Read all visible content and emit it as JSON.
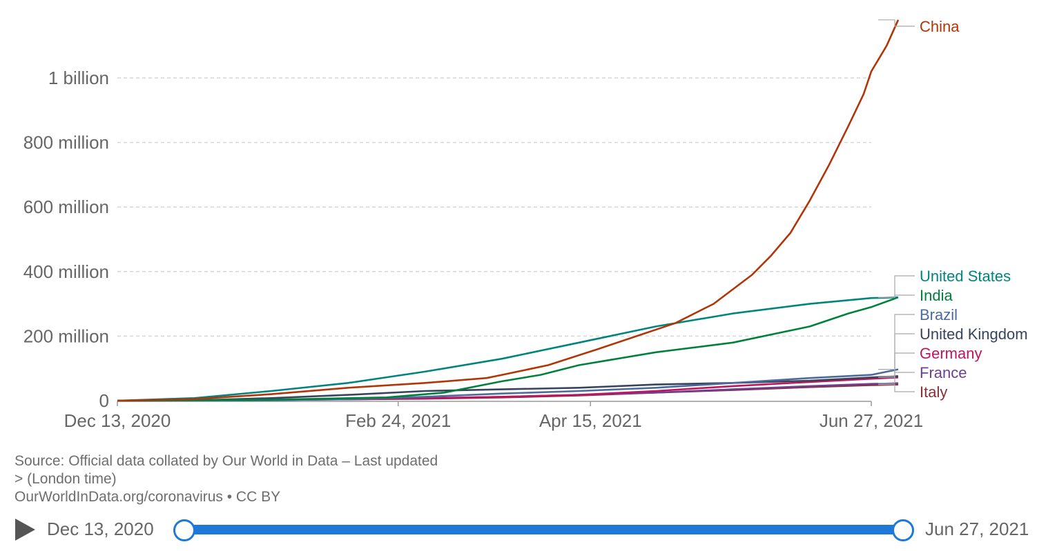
{
  "chart_data": {
    "type": "line",
    "title": "",
    "xlabel": "",
    "ylabel": "",
    "ylim": [
      0,
      1200000000
    ],
    "y_ticks": [
      {
        "value": 0,
        "label": "0"
      },
      {
        "value": 200000000,
        "label": "200 million"
      },
      {
        "value": 400000000,
        "label": "400 million"
      },
      {
        "value": 600000000,
        "label": "600 million"
      },
      {
        "value": 800000000,
        "label": "800 million"
      },
      {
        "value": 1000000000,
        "label": "1 billion"
      }
    ],
    "x_ticks": [
      {
        "day": 0,
        "label": "Dec 13, 2020"
      },
      {
        "day": 73,
        "label": "Feb 24, 2021"
      },
      {
        "day": 123,
        "label": "Apr 15, 2021"
      },
      {
        "day": 196,
        "label": "Jun 27, 2021"
      }
    ],
    "x_unit": "days since Dec 13, 2020",
    "xlim": [
      0,
      196
    ],
    "series": [
      {
        "name": "China",
        "color": "#b13507",
        "points": [
          [
            0,
            0
          ],
          [
            20,
            5000000
          ],
          [
            40,
            20000000
          ],
          [
            60,
            40000000
          ],
          [
            80,
            55000000
          ],
          [
            96,
            70000000
          ],
          [
            100,
            80000000
          ],
          [
            112,
            110000000
          ],
          [
            125,
            160000000
          ],
          [
            135,
            200000000
          ],
          [
            145,
            240000000
          ],
          [
            155,
            300000000
          ],
          [
            165,
            390000000
          ],
          [
            170,
            450000000
          ],
          [
            175,
            520000000
          ],
          [
            180,
            620000000
          ],
          [
            185,
            730000000
          ],
          [
            190,
            850000000
          ],
          [
            194,
            950000000
          ],
          [
            196,
            1020000000
          ],
          [
            200,
            1100000000
          ],
          [
            203,
            1180000000
          ]
        ]
      },
      {
        "name": "United States",
        "color": "#00847e",
        "points": [
          [
            0,
            0
          ],
          [
            20,
            8000000
          ],
          [
            40,
            30000000
          ],
          [
            60,
            55000000
          ],
          [
            80,
            90000000
          ],
          [
            100,
            130000000
          ],
          [
            120,
            180000000
          ],
          [
            140,
            230000000
          ],
          [
            160,
            270000000
          ],
          [
            180,
            300000000
          ],
          [
            196,
            318000000
          ],
          [
            203,
            320000000
          ]
        ]
      },
      {
        "name": "India",
        "color": "#00813b",
        "points": [
          [
            0,
            0
          ],
          [
            40,
            3000000
          ],
          [
            70,
            10000000
          ],
          [
            85,
            25000000
          ],
          [
            100,
            60000000
          ],
          [
            110,
            80000000
          ],
          [
            120,
            110000000
          ],
          [
            140,
            150000000
          ],
          [
            160,
            180000000
          ],
          [
            180,
            230000000
          ],
          [
            190,
            270000000
          ],
          [
            196,
            290000000
          ],
          [
            203,
            320000000
          ]
        ]
      },
      {
        "name": "Brazil",
        "color": "#4c6a9c",
        "points": [
          [
            0,
            0
          ],
          [
            40,
            1000000
          ],
          [
            60,
            5000000
          ],
          [
            80,
            12000000
          ],
          [
            100,
            22000000
          ],
          [
            120,
            30000000
          ],
          [
            140,
            40000000
          ],
          [
            160,
            55000000
          ],
          [
            180,
            70000000
          ],
          [
            196,
            80000000
          ],
          [
            203,
            97000000
          ]
        ]
      },
      {
        "name": "United Kingdom",
        "color": "#38435c",
        "points": [
          [
            0,
            0
          ],
          [
            20,
            1000000
          ],
          [
            40,
            8000000
          ],
          [
            60,
            18000000
          ],
          [
            80,
            30000000
          ],
          [
            100,
            35000000
          ],
          [
            120,
            40000000
          ],
          [
            140,
            50000000
          ],
          [
            160,
            55000000
          ],
          [
            180,
            62000000
          ],
          [
            196,
            72000000
          ],
          [
            203,
            76000000
          ]
        ]
      },
      {
        "name": "Germany",
        "color": "#c0155e",
        "points": [
          [
            0,
            0
          ],
          [
            40,
            3000000
          ],
          [
            60,
            5000000
          ],
          [
            80,
            8000000
          ],
          [
            100,
            12000000
          ],
          [
            120,
            18000000
          ],
          [
            140,
            30000000
          ],
          [
            160,
            45000000
          ],
          [
            180,
            58000000
          ],
          [
            196,
            68000000
          ],
          [
            203,
            72000000
          ]
        ]
      },
      {
        "name": "France",
        "color": "#6d3e91",
        "points": [
          [
            0,
            0
          ],
          [
            40,
            2000000
          ],
          [
            60,
            4000000
          ],
          [
            80,
            7000000
          ],
          [
            100,
            12000000
          ],
          [
            120,
            18000000
          ],
          [
            140,
            25000000
          ],
          [
            160,
            35000000
          ],
          [
            180,
            45000000
          ],
          [
            196,
            52000000
          ],
          [
            203,
            54000000
          ]
        ]
      },
      {
        "name": "Italy",
        "color": "#883039",
        "points": [
          [
            0,
            0
          ],
          [
            40,
            2000000
          ],
          [
            60,
            4000000
          ],
          [
            80,
            6000000
          ],
          [
            100,
            10000000
          ],
          [
            120,
            16000000
          ],
          [
            140,
            25000000
          ],
          [
            160,
            33000000
          ],
          [
            180,
            42000000
          ],
          [
            196,
            48000000
          ],
          [
            203,
            50000000
          ]
        ]
      }
    ]
  },
  "source": {
    "line1": "Source: Official data collated by Our World in Data – Last updated",
    "line2": "> (London time)",
    "line3": "OurWorldInData.org/coronavirus • CC BY"
  },
  "timeline": {
    "start_label": "Dec 13, 2020",
    "end_label": "Jun 27, 2021"
  }
}
